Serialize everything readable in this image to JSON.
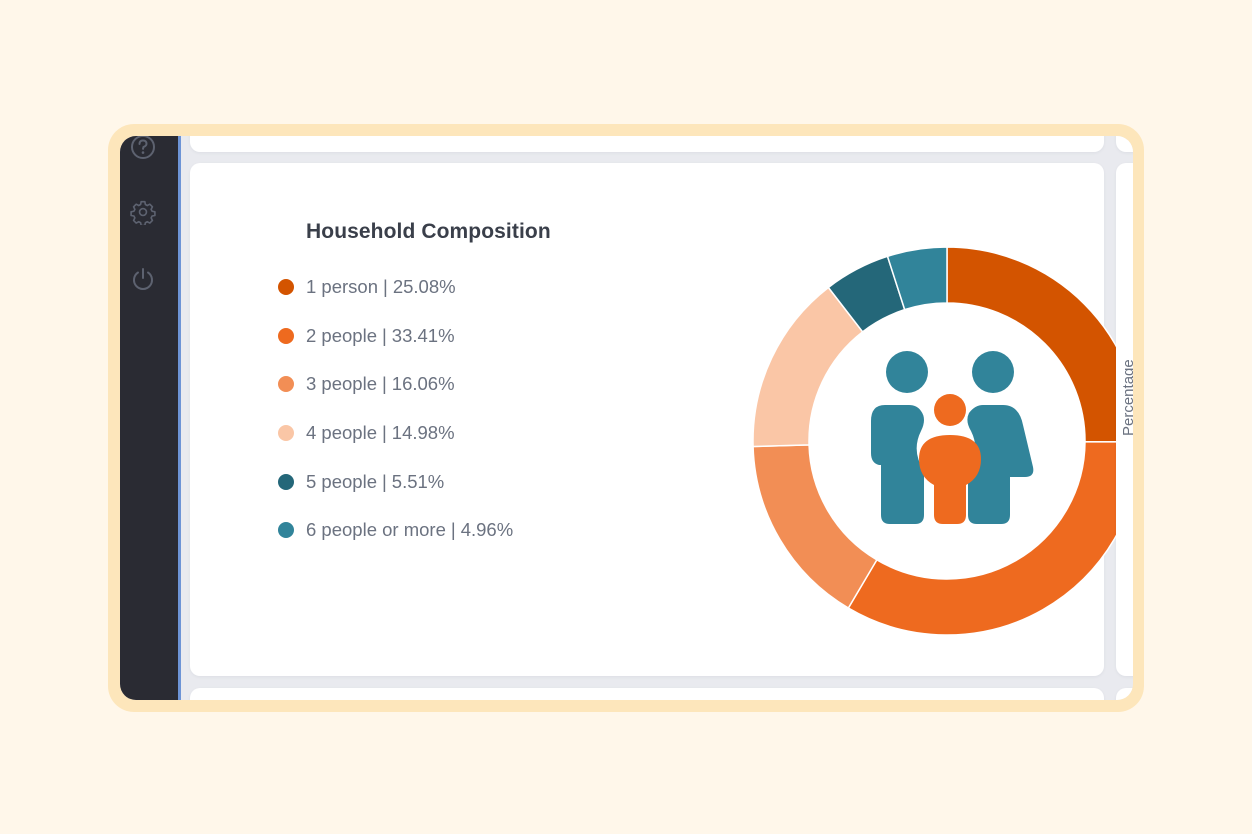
{
  "sidebar": {
    "icons": [
      {
        "name": "help-icon"
      },
      {
        "name": "settings-icon"
      },
      {
        "name": "power-icon"
      }
    ]
  },
  "card": {
    "title": "Household Composition",
    "right_axis_label": "Percentage"
  },
  "legend": {
    "separator": "|",
    "items": [
      {
        "label": "1 person",
        "value": "25.08%",
        "color": "#d35400"
      },
      {
        "label": "2 people",
        "value": "33.41%",
        "color": "#ee6a1f"
      },
      {
        "label": "3 people",
        "value": "16.06%",
        "color": "#f28e55"
      },
      {
        "label": "4 people",
        "value": "14.98%",
        "color": "#fac6a6"
      },
      {
        "label": "5 people",
        "value": "5.51%",
        "color": "#246779"
      },
      {
        "label": "6 people or more",
        "value": "4.96%",
        "color": "#31849a"
      }
    ]
  },
  "center_icon": {
    "name": "family-icon",
    "adult_color": "#31849a",
    "child_color": "#ee6a1f"
  },
  "chart_data": {
    "type": "pie",
    "variant": "donut",
    "title": "Household Composition",
    "categories": [
      "1 person",
      "2 people",
      "3 people",
      "4 people",
      "5 people",
      "6 people or more"
    ],
    "values": [
      25.08,
      33.41,
      16.06,
      14.98,
      5.51,
      4.96
    ],
    "colors": [
      "#d35400",
      "#ee6a1f",
      "#f28e55",
      "#fac6a6",
      "#246779",
      "#31849a"
    ],
    "unit": "%",
    "start_angle": "12 o'clock",
    "direction": "clockwise",
    "legend_position": "left",
    "center_graphic": "family icon"
  }
}
